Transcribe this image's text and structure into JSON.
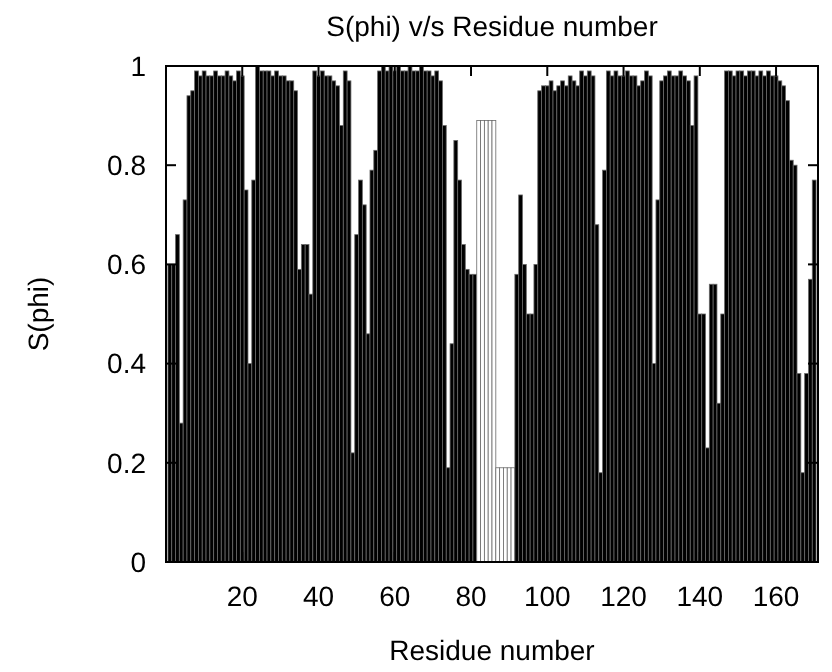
{
  "chart_data": {
    "type": "bar",
    "title": "S(phi) v/s Residue number",
    "xlabel": "Residue number",
    "ylabel": "S(phi)",
    "x": [
      1,
      2,
      3,
      4,
      5,
      6,
      7,
      8,
      9,
      10,
      11,
      12,
      13,
      14,
      15,
      16,
      17,
      18,
      19,
      20,
      21,
      22,
      23,
      24,
      25,
      26,
      27,
      28,
      29,
      30,
      31,
      32,
      33,
      34,
      35,
      36,
      37,
      38,
      39,
      40,
      41,
      42,
      43,
      44,
      45,
      46,
      47,
      48,
      49,
      50,
      51,
      52,
      53,
      54,
      55,
      56,
      57,
      58,
      59,
      60,
      61,
      62,
      63,
      64,
      65,
      66,
      67,
      68,
      69,
      70,
      71,
      72,
      73,
      74,
      75,
      76,
      77,
      78,
      79,
      80,
      81,
      82,
      83,
      84,
      85,
      86,
      87,
      88,
      89,
      90,
      91,
      92,
      93,
      94,
      95,
      96,
      97,
      98,
      99,
      100,
      101,
      102,
      103,
      104,
      105,
      106,
      107,
      108,
      109,
      110,
      111,
      112,
      113,
      114,
      115,
      116,
      117,
      118,
      119,
      120,
      121,
      122,
      123,
      124,
      125,
      126,
      127,
      128,
      129,
      130,
      131,
      132,
      133,
      134,
      135,
      136,
      137,
      138,
      139,
      140,
      141,
      142,
      143,
      144,
      145,
      146,
      147,
      148,
      149,
      150,
      151,
      152,
      153,
      154,
      155,
      156,
      157,
      158,
      159,
      160,
      161,
      162,
      163,
      164,
      165,
      166,
      167,
      168,
      169,
      170
    ],
    "values": [
      0.6,
      0.6,
      0.66,
      0.28,
      0.73,
      0.94,
      0.95,
      0.99,
      0.98,
      0.99,
      0.98,
      0.98,
      0.99,
      0.98,
      0.98,
      0.99,
      0.98,
      0.97,
      0.99,
      0.98,
      0.75,
      0.4,
      0.77,
      1.0,
      0.99,
      0.99,
      0.99,
      0.98,
      0.99,
      0.98,
      0.98,
      0.97,
      0.97,
      0.95,
      0.59,
      0.64,
      0.64,
      0.54,
      0.99,
      0.98,
      0.99,
      0.98,
      0.98,
      0.97,
      0.96,
      0.88,
      0.99,
      0.97,
      0.22,
      0.66,
      0.77,
      0.72,
      0.46,
      0.79,
      0.83,
      0.99,
      1.0,
      0.99,
      1.0,
      0.99,
      1.0,
      0.99,
      0.99,
      1.0,
      0.99,
      0.99,
      1.0,
      0.99,
      0.99,
      0.98,
      0.99,
      0.97,
      0.88,
      0.19,
      0.44,
      0.85,
      0.77,
      0.64,
      0.59,
      0.58,
      0.58,
      0.89,
      0.89,
      0.89,
      0.89,
      0.89,
      0.19,
      0.19,
      0.19,
      0.19,
      0.19,
      0.58,
      0.74,
      0.6,
      0.5,
      0.5,
      0.6,
      0.95,
      0.96,
      0.96,
      0.97,
      0.95,
      0.96,
      0.97,
      0.96,
      0.98,
      0.97,
      0.96,
      0.99,
      0.98,
      0.99,
      0.98,
      0.68,
      0.18,
      0.79,
      0.99,
      0.98,
      0.99,
      0.98,
      0.98,
      0.99,
      0.98,
      0.98,
      0.96,
      0.97,
      0.99,
      0.98,
      0.4,
      0.73,
      0.97,
      0.98,
      0.99,
      0.98,
      0.98,
      0.99,
      0.98,
      0.97,
      0.88,
      0.98,
      0.5,
      0.5,
      0.23,
      0.56,
      0.56,
      0.32,
      0.5,
      0.99,
      0.99,
      0.98,
      0.99,
      0.99,
      0.98,
      0.99,
      0.99,
      0.98,
      0.99,
      0.98,
      0.99,
      0.98,
      0.98,
      0.97,
      0.96,
      0.93,
      0.81,
      0.8,
      0.38,
      0.18,
      0.38,
      0.57,
      0.77
    ],
    "colors": [
      "#000000",
      "#000000",
      "#000000",
      "#000000",
      "#000000",
      "#000000",
      "#000000",
      "#000000",
      "#000000",
      "#000000",
      "#000000",
      "#000000",
      "#000000",
      "#000000",
      "#000000",
      "#000000",
      "#000000",
      "#000000",
      "#000000",
      "#000000",
      "#000000",
      "#000000",
      "#000000",
      "#000000",
      "#000000",
      "#000000",
      "#000000",
      "#000000",
      "#000000",
      "#000000",
      "#000000",
      "#000000",
      "#000000",
      "#000000",
      "#000000",
      "#000000",
      "#000000",
      "#000000",
      "#000000",
      "#000000",
      "#000000",
      "#000000",
      "#000000",
      "#000000",
      "#000000",
      "#000000",
      "#000000",
      "#000000",
      "#000000",
      "#000000",
      "#000000",
      "#000000",
      "#000000",
      "#000000",
      "#000000",
      "#000000",
      "#000000",
      "#000000",
      "#000000",
      "#000000",
      "#000000",
      "#000000",
      "#000000",
      "#000000",
      "#000000",
      "#000000",
      "#000000",
      "#000000",
      "#000000",
      "#000000",
      "#000000",
      "#000000",
      "#000000",
      "#000000",
      "#000000",
      "#000000",
      "#000000",
      "#000000",
      "#000000",
      "#000000",
      "#000000",
      "#ffffff",
      "#ffffff",
      "#ffffff",
      "#ffffff",
      "#ffffff",
      "#ffffff",
      "#ffffff",
      "#ffffff",
      "#ffffff",
      "#ffffff",
      "#000000",
      "#000000",
      "#000000",
      "#000000",
      "#000000",
      "#000000",
      "#000000",
      "#000000",
      "#000000",
      "#000000",
      "#000000",
      "#000000",
      "#000000",
      "#000000",
      "#000000",
      "#000000",
      "#000000",
      "#000000",
      "#000000",
      "#000000",
      "#000000",
      "#000000",
      "#000000",
      "#000000",
      "#000000",
      "#000000",
      "#000000",
      "#000000",
      "#000000",
      "#000000",
      "#000000",
      "#000000",
      "#000000",
      "#000000",
      "#000000",
      "#000000",
      "#000000",
      "#000000",
      "#000000",
      "#000000",
      "#000000",
      "#000000",
      "#000000",
      "#000000",
      "#000000",
      "#000000",
      "#000000",
      "#000000",
      "#000000",
      "#000000",
      "#000000",
      "#000000",
      "#000000",
      "#000000",
      "#000000",
      "#000000",
      "#000000",
      "#000000",
      "#000000",
      "#000000",
      "#000000",
      "#000000",
      "#000000",
      "#000000",
      "#000000",
      "#000000",
      "#000000",
      "#000000",
      "#000000",
      "#000000",
      "#000000",
      "#000000",
      "#000000",
      "#000000",
      "#000000",
      "#000000",
      "#000000",
      "#000000",
      "#000000"
    ],
    "xlim": [
      0,
      171
    ],
    "xticks": [
      20,
      40,
      60,
      80,
      100,
      120,
      140,
      160
    ],
    "ylim": [
      0,
      1
    ],
    "yticks": [
      0,
      0.2,
      0.4,
      0.6,
      0.8,
      1
    ]
  }
}
